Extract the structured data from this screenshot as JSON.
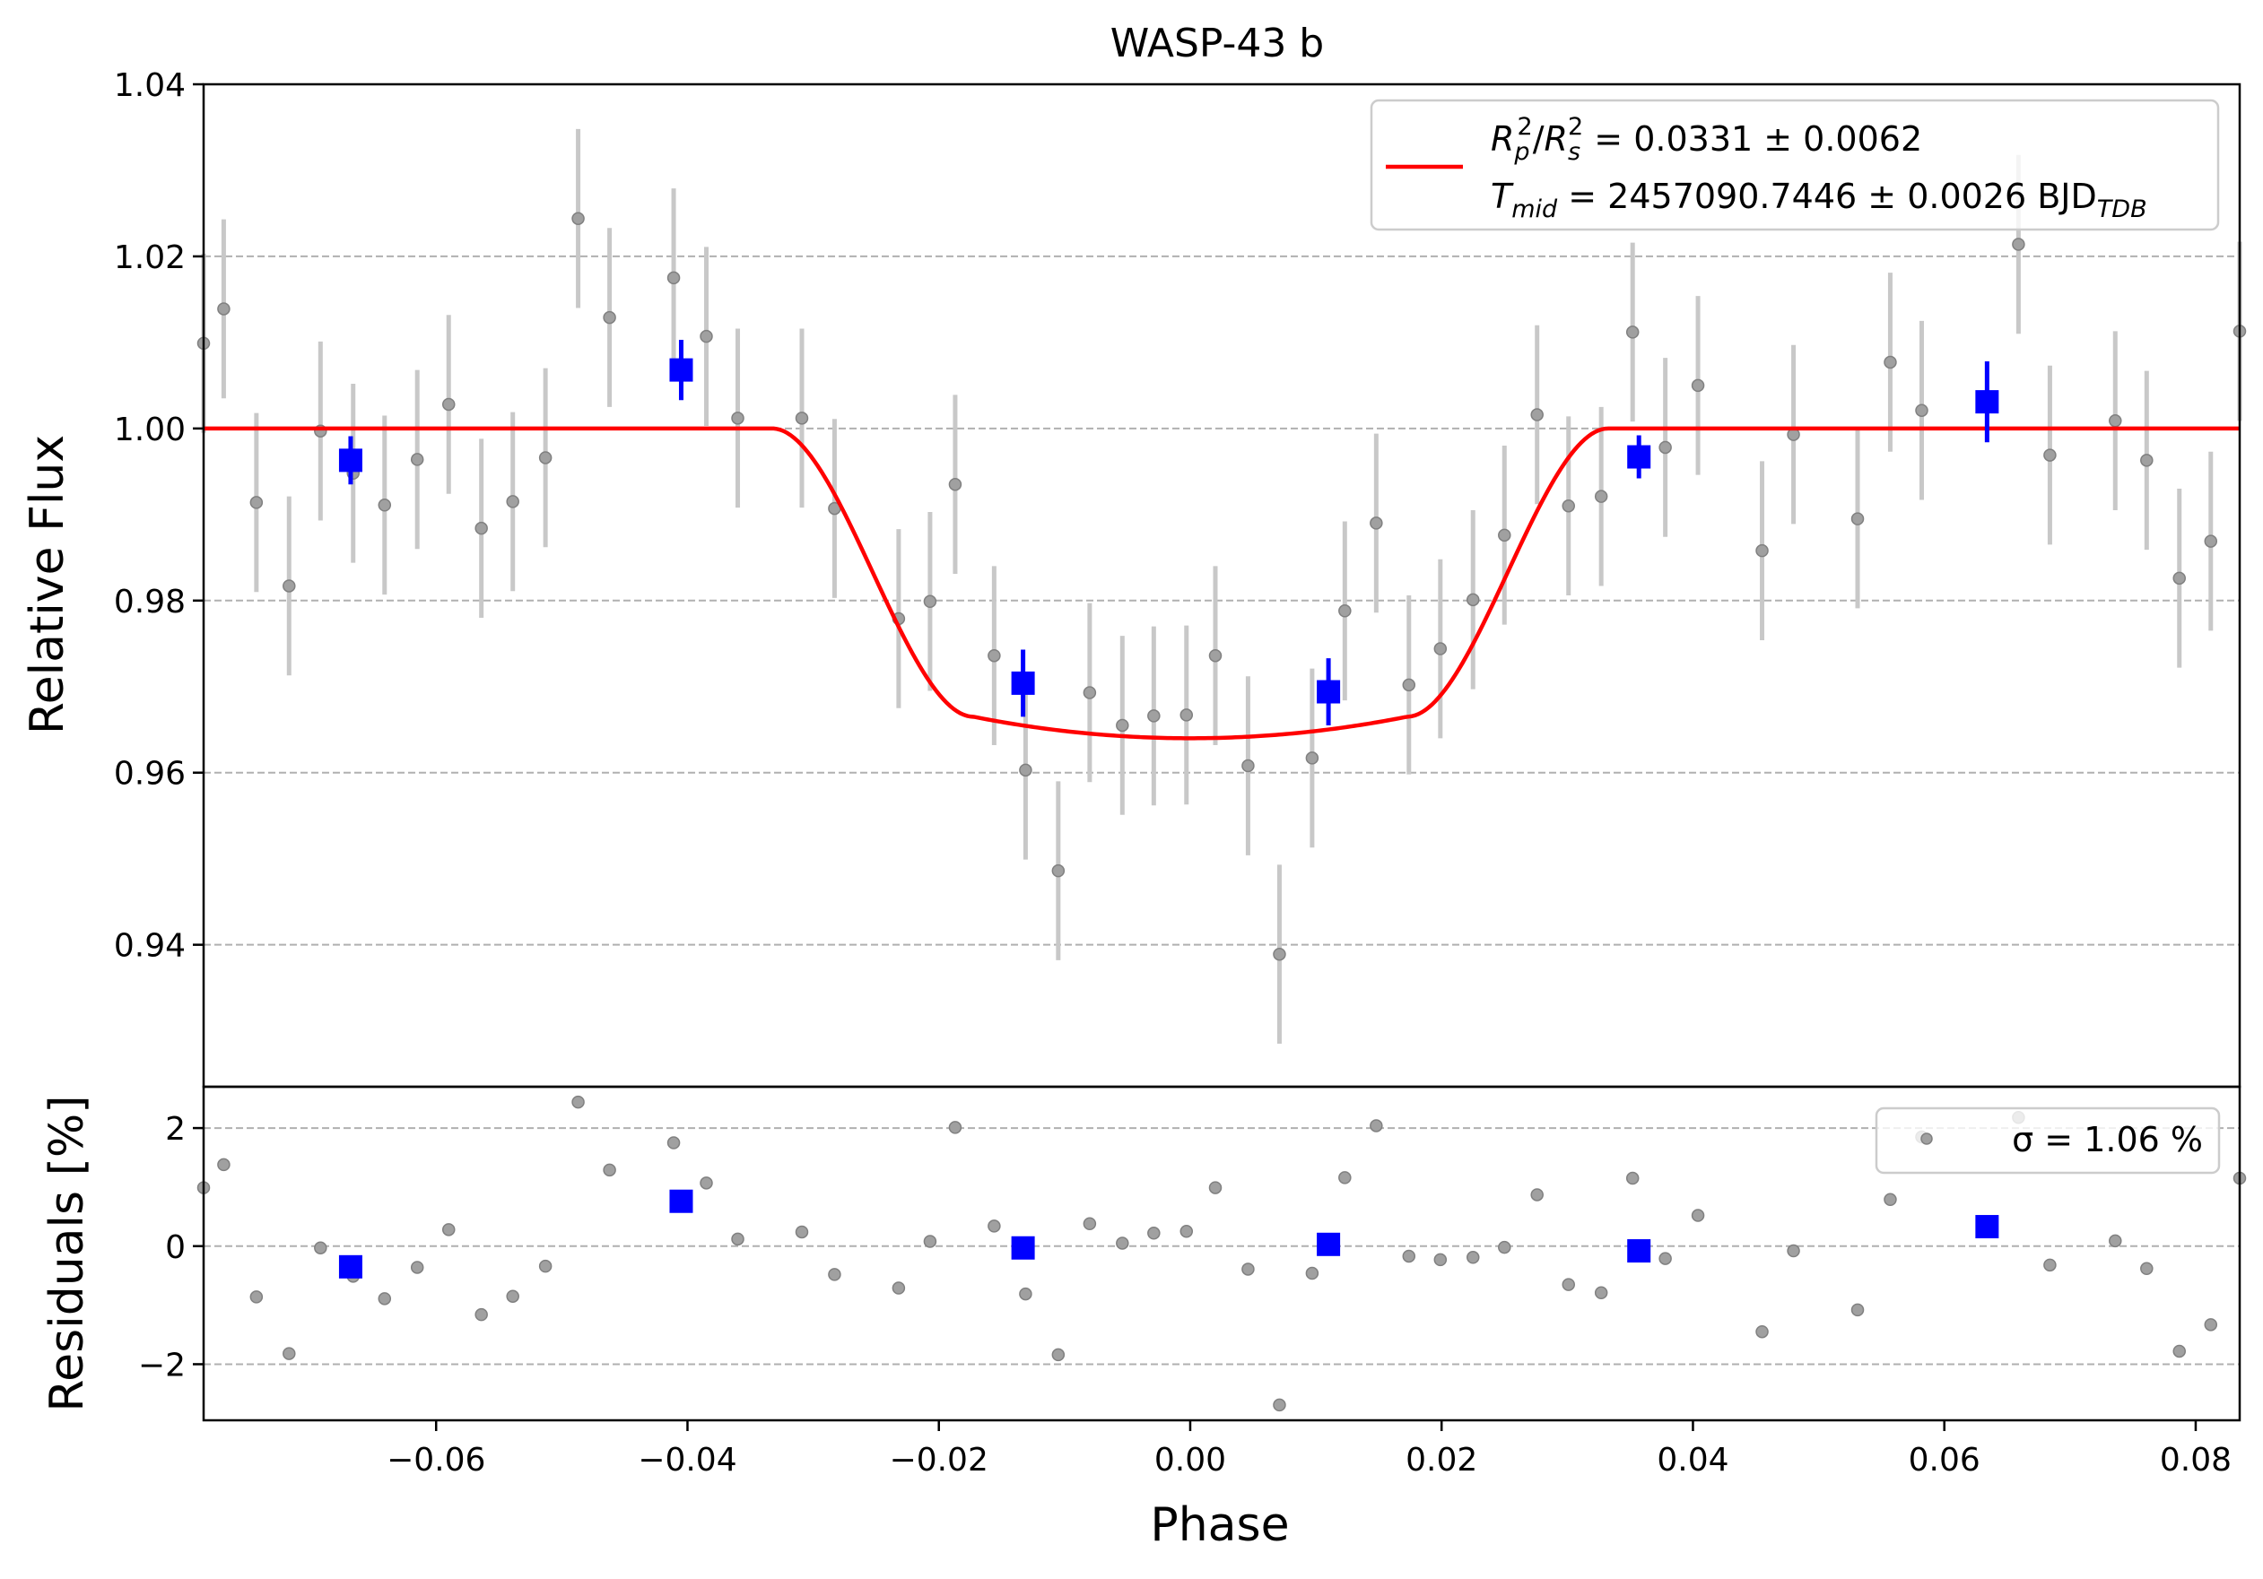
{
  "chart_data": [
    {
      "type": "scatter",
      "title": "WASP-43 b",
      "xlabel": "",
      "ylabel": "Relative Flux",
      "xlim": [
        -0.0785,
        0.0835
      ],
      "ylim": [
        0.9235,
        1.04
      ],
      "yticks": [
        0.94,
        0.96,
        0.98,
        1.0,
        1.02,
        1.04
      ],
      "ytick_labels": [
        "0.94",
        "0.96",
        "0.98",
        "1.00",
        "1.02",
        "1.04"
      ],
      "grid": "horizontal dashed",
      "legend_position": "top-right",
      "legend": {
        "line1": "R_p^2/R_s^2 = 0.0331 ± 0.0062",
        "line2": "T_mid = 2457090.7446 ± 0.0026 BJD_TDB"
      },
      "series": [
        {
          "color": "#808080",
          "marker": "circle",
          "errorbar_color": "#c8c8c8",
          "points": [
            {
              "x": -0.0785,
              "y": 1.0099,
              "err": 0.0104
            },
            {
              "x": -0.0769,
              "y": 1.0139,
              "err": 0.0104
            },
            {
              "x": -0.0743,
              "y": 0.9914,
              "err": 0.0104
            },
            {
              "x": -0.0717,
              "y": 0.9817,
              "err": 0.0104
            },
            {
              "x": -0.0692,
              "y": 0.9997,
              "err": 0.0104
            },
            {
              "x": -0.0666,
              "y": 0.9948,
              "err": 0.0104
            },
            {
              "x": -0.0641,
              "y": 0.9911,
              "err": 0.0104
            },
            {
              "x": -0.0615,
              "y": 0.9964,
              "err": 0.0104
            },
            {
              "x": -0.059,
              "y": 1.0028,
              "err": 0.0104
            },
            {
              "x": -0.0564,
              "y": 0.9884,
              "err": 0.0104
            },
            {
              "x": -0.0539,
              "y": 0.9915,
              "err": 0.0104
            },
            {
              "x": -0.0513,
              "y": 0.9966,
              "err": 0.0104
            },
            {
              "x": -0.0487,
              "y": 1.0244,
              "err": 0.0104
            },
            {
              "x": -0.0462,
              "y": 1.0129,
              "err": 0.0104
            },
            {
              "x": -0.0411,
              "y": 1.0175,
              "err": 0.0104
            },
            {
              "x": -0.0385,
              "y": 1.0107,
              "err": 0.0104
            },
            {
              "x": -0.036,
              "y": 1.0012,
              "err": 0.0104
            },
            {
              "x": -0.0309,
              "y": 1.0012,
              "err": 0.0104
            },
            {
              "x": -0.0283,
              "y": 0.9907,
              "err": 0.0104
            },
            {
              "x": -0.0232,
              "y": 0.9779,
              "err": 0.0104
            },
            {
              "x": -0.0207,
              "y": 0.9799,
              "err": 0.0104
            },
            {
              "x": -0.0187,
              "y": 0.9935,
              "err": 0.0104
            },
            {
              "x": -0.0156,
              "y": 0.9736,
              "err": 0.0104
            },
            {
              "x": -0.0131,
              "y": 0.9603,
              "err": 0.0104
            },
            {
              "x": -0.0105,
              "y": 0.9486,
              "err": 0.0104
            },
            {
              "x": -0.008,
              "y": 0.9693,
              "err": 0.0104
            },
            {
              "x": -0.0054,
              "y": 0.9655,
              "err": 0.0104
            },
            {
              "x": -0.0029,
              "y": 0.9666,
              "err": 0.0104
            },
            {
              "x": -0.0003,
              "y": 0.9667,
              "err": 0.0104
            },
            {
              "x": 0.002,
              "y": 0.9736,
              "err": 0.0104
            },
            {
              "x": 0.0046,
              "y": 0.9608,
              "err": 0.0104
            },
            {
              "x": 0.0071,
              "y": 0.9389,
              "err": 0.0104
            },
            {
              "x": 0.0097,
              "y": 0.9617,
              "err": 0.0104
            },
            {
              "x": 0.0123,
              "y": 0.9788,
              "err": 0.0104
            },
            {
              "x": 0.0148,
              "y": 0.989,
              "err": 0.0104
            },
            {
              "x": 0.0174,
              "y": 0.9702,
              "err": 0.0104
            },
            {
              "x": 0.0199,
              "y": 0.9744,
              "err": 0.0104
            },
            {
              "x": 0.0225,
              "y": 0.9801,
              "err": 0.0104
            },
            {
              "x": 0.025,
              "y": 0.9876,
              "err": 0.0104
            },
            {
              "x": 0.0276,
              "y": 1.0016,
              "err": 0.0104
            },
            {
              "x": 0.0301,
              "y": 0.991,
              "err": 0.0104
            },
            {
              "x": 0.0327,
              "y": 0.9921,
              "err": 0.0104
            },
            {
              "x": 0.0352,
              "y": 1.0112,
              "err": 0.0104
            },
            {
              "x": 0.0378,
              "y": 0.9978,
              "err": 0.0104
            },
            {
              "x": 0.0404,
              "y": 1.005,
              "err": 0.0104
            },
            {
              "x": 0.0455,
              "y": 0.9858,
              "err": 0.0104
            },
            {
              "x": 0.048,
              "y": 0.9993,
              "err": 0.0104
            },
            {
              "x": 0.0531,
              "y": 0.9895,
              "err": 0.0104
            },
            {
              "x": 0.0557,
              "y": 1.0077,
              "err": 0.0104
            },
            {
              "x": 0.0582,
              "y": 1.0021,
              "err": 0.0104
            },
            {
              "x": 0.0659,
              "y": 1.0214,
              "err": 0.0104
            },
            {
              "x": 0.0684,
              "y": 0.9969,
              "err": 0.0104
            },
            {
              "x": 0.0736,
              "y": 1.0009,
              "err": 0.0104
            },
            {
              "x": 0.0761,
              "y": 0.9963,
              "err": 0.0104
            },
            {
              "x": 0.0787,
              "y": 0.9826,
              "err": 0.0104
            },
            {
              "x": 0.0812,
              "y": 0.9869,
              "err": 0.0104
            },
            {
              "x": 0.0835,
              "y": 1.0113,
              "err": 0.0104
            }
          ]
        },
        {
          "color": "#0000ff",
          "marker": "square",
          "points": [
            {
              "x": -0.0668,
              "y": 0.9963,
              "err": 0.0028
            },
            {
              "x": -0.0405,
              "y": 1.0068,
              "err": 0.0035
            },
            {
              "x": -0.0133,
              "y": 0.9704,
              "err": 0.0039
            },
            {
              "x": 0.011,
              "y": 0.9694,
              "err": 0.0039
            },
            {
              "x": 0.0357,
              "y": 0.9967,
              "err": 0.0025
            },
            {
              "x": 0.0634,
              "y": 1.0031,
              "err": 0.0047
            }
          ]
        },
        {
          "type": "line",
          "color": "#ff0000",
          "model": {
            "depth": 0.036,
            "t14": 0.0665,
            "t23": 0.0345,
            "bottom_curvature": 0.0025,
            "baseline": 1.0
          }
        }
      ]
    },
    {
      "type": "scatter",
      "xlabel": "Phase",
      "ylabel": "Residuals [%]",
      "xlim": [
        -0.0785,
        0.0835
      ],
      "ylim": [
        -2.95,
        2.7
      ],
      "xticks": [
        -0.06,
        -0.04,
        -0.02,
        0.0,
        0.02,
        0.04,
        0.06,
        0.08
      ],
      "xtick_labels": [
        "−0.06",
        "−0.04",
        "−0.02",
        "0.00",
        "0.02",
        "0.04",
        "0.06",
        "0.08"
      ],
      "yticks": [
        -2,
        0,
        2
      ],
      "ytick_labels": [
        "−2",
        "0",
        "2"
      ],
      "grid": "horizontal dashed",
      "legend_position": "top-right",
      "legend": {
        "label": "σ = 1.06 %"
      },
      "series": [
        {
          "color": "#808080",
          "marker": "circle",
          "points": [
            {
              "x": -0.0785,
              "y": 0.99
            },
            {
              "x": -0.0769,
              "y": 1.38
            },
            {
              "x": -0.0743,
              "y": -0.86
            },
            {
              "x": -0.0717,
              "y": -1.82
            },
            {
              "x": -0.0692,
              "y": -0.03
            },
            {
              "x": -0.0666,
              "y": -0.51
            },
            {
              "x": -0.0641,
              "y": -0.89
            },
            {
              "x": -0.0615,
              "y": -0.36
            },
            {
              "x": -0.059,
              "y": 0.28
            },
            {
              "x": -0.0564,
              "y": -1.16
            },
            {
              "x": -0.0539,
              "y": -0.85
            },
            {
              "x": -0.0513,
              "y": -0.34
            },
            {
              "x": -0.0487,
              "y": 2.44
            },
            {
              "x": -0.0462,
              "y": 1.29
            },
            {
              "x": -0.0411,
              "y": 1.75
            },
            {
              "x": -0.0385,
              "y": 1.07
            },
            {
              "x": -0.036,
              "y": 0.12
            },
            {
              "x": -0.0309,
              "y": 0.24
            },
            {
              "x": -0.0283,
              "y": -0.48
            },
            {
              "x": -0.0232,
              "y": -0.71
            },
            {
              "x": -0.0207,
              "y": 0.08
            },
            {
              "x": -0.0187,
              "y": 2.01
            },
            {
              "x": -0.0156,
              "y": 0.34
            },
            {
              "x": -0.0131,
              "y": -0.81
            },
            {
              "x": -0.0105,
              "y": -1.84
            },
            {
              "x": -0.008,
              "y": 0.38
            },
            {
              "x": -0.0054,
              "y": 0.05
            },
            {
              "x": -0.0029,
              "y": 0.22
            },
            {
              "x": -0.0003,
              "y": 0.25
            },
            {
              "x": 0.002,
              "y": 0.99
            },
            {
              "x": 0.0046,
              "y": -0.39
            },
            {
              "x": 0.0071,
              "y": -2.69
            },
            {
              "x": 0.0097,
              "y": -0.46
            },
            {
              "x": 0.0123,
              "y": 1.16
            },
            {
              "x": 0.0148,
              "y": 2.04
            },
            {
              "x": 0.0174,
              "y": -0.17
            },
            {
              "x": 0.0199,
              "y": -0.23
            },
            {
              "x": 0.0225,
              "y": -0.19
            },
            {
              "x": 0.025,
              "y": -0.02
            },
            {
              "x": 0.0276,
              "y": 0.87
            },
            {
              "x": 0.0301,
              "y": -0.65
            },
            {
              "x": 0.0327,
              "y": -0.79
            },
            {
              "x": 0.0352,
              "y": 1.15
            },
            {
              "x": 0.0378,
              "y": -0.21
            },
            {
              "x": 0.0404,
              "y": 0.52
            },
            {
              "x": 0.0455,
              "y": -1.45
            },
            {
              "x": 0.048,
              "y": -0.08
            },
            {
              "x": 0.0531,
              "y": -1.08
            },
            {
              "x": 0.0557,
              "y": 0.79
            },
            {
              "x": 0.0582,
              "y": 1.85
            },
            {
              "x": 0.0659,
              "y": 2.18
            },
            {
              "x": 0.0684,
              "y": -0.32
            },
            {
              "x": 0.0736,
              "y": 0.09
            },
            {
              "x": 0.0761,
              "y": -0.38
            },
            {
              "x": 0.0787,
              "y": -1.78
            },
            {
              "x": 0.0812,
              "y": -1.33
            },
            {
              "x": 0.0835,
              "y": 1.15
            }
          ]
        },
        {
          "color": "#0000ff",
          "marker": "square",
          "points": [
            {
              "x": -0.0668,
              "y": -0.35
            },
            {
              "x": -0.0405,
              "y": 0.76
            },
            {
              "x": -0.0133,
              "y": -0.03
            },
            {
              "x": 0.011,
              "y": 0.03
            },
            {
              "x": 0.0357,
              "y": -0.08
            },
            {
              "x": 0.0634,
              "y": 0.33
            }
          ]
        }
      ]
    }
  ]
}
